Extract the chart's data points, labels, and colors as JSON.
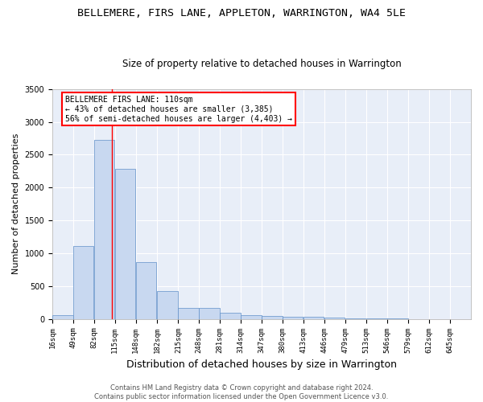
{
  "title": "BELLEMERE, FIRS LANE, APPLETON, WARRINGTON, WA4 5LE",
  "subtitle": "Size of property relative to detached houses in Warrington",
  "xlabel": "Distribution of detached houses by size in Warrington",
  "ylabel": "Number of detached properties",
  "footer1": "Contains HM Land Registry data © Crown copyright and database right 2024.",
  "footer2": "Contains public sector information licensed under the Open Government Licence v3.0.",
  "annotation_title": "BELLEMERE FIRS LANE: 110sqm",
  "annotation_line1": "← 43% of detached houses are smaller (3,385)",
  "annotation_line2": "56% of semi-detached houses are larger (4,403) →",
  "bar_color": "#c8d8f0",
  "bar_edge_color": "#6090c8",
  "red_line_x": 110,
  "bins": [
    16,
    49,
    82,
    115,
    148,
    182,
    215,
    248,
    281,
    314,
    347,
    380,
    413,
    446,
    479,
    513,
    546,
    579,
    612,
    645,
    678
  ],
  "counts": [
    55,
    1105,
    2720,
    2290,
    870,
    430,
    170,
    165,
    90,
    60,
    50,
    35,
    30,
    15,
    5,
    5,
    5,
    2,
    2,
    2
  ],
  "ylim": [
    0,
    3500
  ],
  "yticks": [
    0,
    500,
    1000,
    1500,
    2000,
    2500,
    3000,
    3500
  ],
  "background_color": "#e8eef8",
  "grid_color": "#ffffff",
  "title_fontsize": 9.5,
  "subtitle_fontsize": 8.5,
  "axis_label_fontsize": 8,
  "tick_fontsize": 6.5,
  "footer_fontsize": 6,
  "annotation_fontsize": 7
}
